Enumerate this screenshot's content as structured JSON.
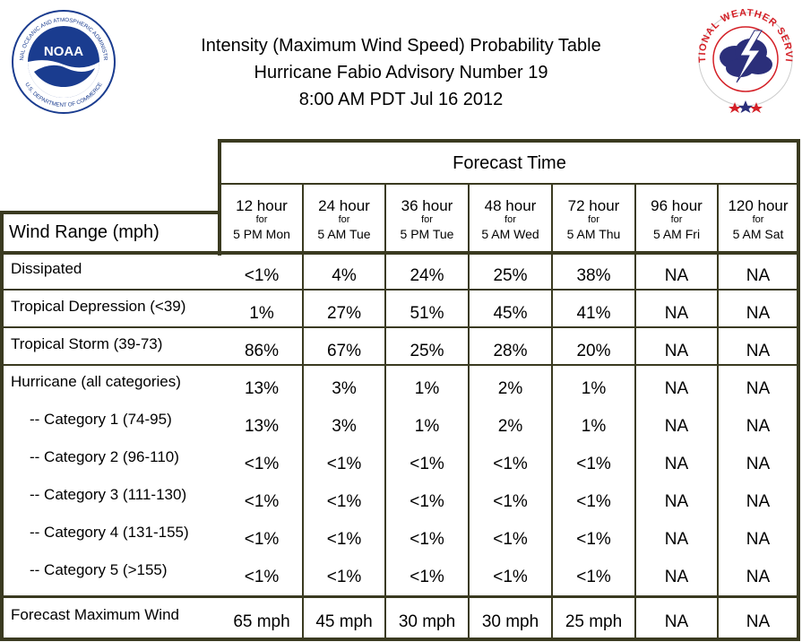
{
  "header": {
    "title_lines": [
      "Intensity (Maximum Wind Speed) Probability Table",
      "Hurricane Fabio Advisory Number 19",
      "8:00 AM PDT Jul 16 2012"
    ],
    "noaa_logo_text": "NOAA",
    "noaa_ring_text": "NATIONAL OCEANIC AND ATMOSPHERIC ADMINISTRATION",
    "noaa_ring_text_bottom": "U.S. DEPARTMENT OF COMMERCE",
    "nws_ring_text": "NATIONAL WEATHER SERVICE"
  },
  "table": {
    "group_header": "Forecast Time",
    "row_header": "Wind Range (mph)",
    "columns": [
      {
        "hour": "12 hour",
        "for": "for",
        "when": "5 PM Mon"
      },
      {
        "hour": "24 hour",
        "for": "for",
        "when": "5 AM Tue"
      },
      {
        "hour": "36 hour",
        "for": "for",
        "when": "5 PM Tue"
      },
      {
        "hour": "48 hour",
        "for": "for",
        "when": "5 AM Wed"
      },
      {
        "hour": "72 hour",
        "for": "for",
        "when": "5 AM Thu"
      },
      {
        "hour": "96 hour",
        "for": "for",
        "when": "5 AM Fri"
      },
      {
        "hour": "120 hour",
        "for": "for",
        "when": "5 AM Sat"
      }
    ],
    "rows": [
      {
        "label": "Dissipated",
        "values": [
          "<1%",
          "4%",
          "24%",
          "25%",
          "38%",
          "NA",
          "NA"
        ]
      },
      {
        "label": "Tropical Depression (<39)",
        "values": [
          "1%",
          "27%",
          "51%",
          "45%",
          "41%",
          "NA",
          "NA"
        ]
      },
      {
        "label": "Tropical Storm (39-73)",
        "values": [
          "86%",
          "67%",
          "25%",
          "28%",
          "20%",
          "NA",
          "NA"
        ]
      },
      {
        "label": "Hurricane (all categories)",
        "values": [
          "13%",
          "3%",
          "1%",
          "2%",
          "1%",
          "NA",
          "NA"
        ]
      },
      {
        "label": "-- Category 1 (74-95)",
        "values": [
          "13%",
          "3%",
          "1%",
          "2%",
          "1%",
          "NA",
          "NA"
        ]
      },
      {
        "label": "-- Category 2 (96-110)",
        "values": [
          "<1%",
          "<1%",
          "<1%",
          "<1%",
          "<1%",
          "NA",
          "NA"
        ]
      },
      {
        "label": "-- Category 3 (111-130)",
        "values": [
          "<1%",
          "<1%",
          "<1%",
          "<1%",
          "<1%",
          "NA",
          "NA"
        ]
      },
      {
        "label": "-- Category 4 (131-155)",
        "values": [
          "<1%",
          "<1%",
          "<1%",
          "<1%",
          "<1%",
          "NA",
          "NA"
        ]
      },
      {
        "label": "-- Category 5 (>155)",
        "values": [
          "<1%",
          "<1%",
          "<1%",
          "<1%",
          "<1%",
          "NA",
          "NA"
        ]
      },
      {
        "label": "Forecast Maximum Wind",
        "values": [
          "65 mph",
          "45 mph",
          "30 mph",
          "30 mph",
          "25 mph",
          "NA",
          "NA"
        ]
      }
    ]
  },
  "colors": {
    "border": "#3a3a20",
    "noaa_blue": "#1a3c8f",
    "nws_red": "#d42027"
  }
}
